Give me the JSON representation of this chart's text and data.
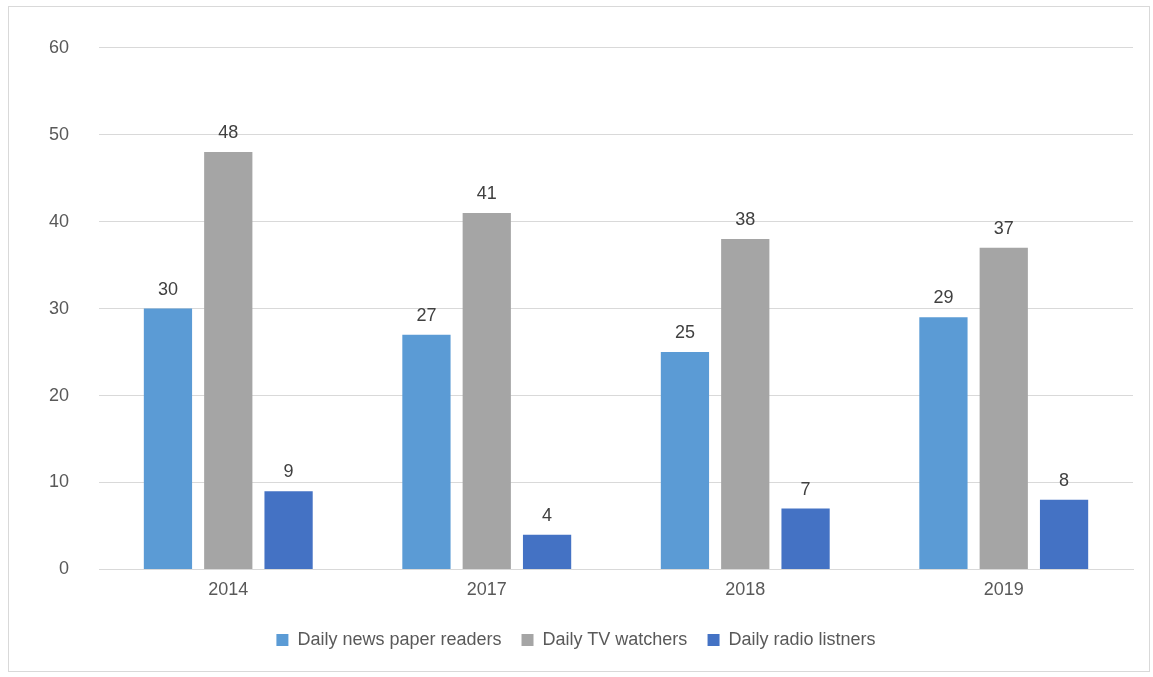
{
  "chart_data": {
    "type": "bar",
    "categories": [
      "2014",
      "2017",
      "2018",
      "2019"
    ],
    "series": [
      {
        "name": "Daily news paper readers",
        "color": "#5b9bd5",
        "values": [
          30,
          27,
          25,
          29
        ]
      },
      {
        "name": "Daily TV watchers",
        "color": "#a5a5a5",
        "values": [
          48,
          41,
          38,
          37
        ]
      },
      {
        "name": "Daily radio listners",
        "color": "#4472c4",
        "values": [
          9,
          4,
          7,
          8
        ]
      }
    ],
    "ylim": [
      0,
      60
    ],
    "yticks": [
      0,
      10,
      20,
      30,
      40,
      50,
      60
    ],
    "grid": "y",
    "legend": "bottom",
    "data_labels": true
  }
}
